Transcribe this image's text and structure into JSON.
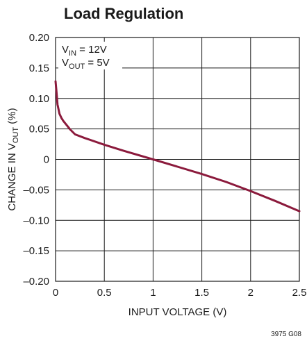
{
  "chart_data": {
    "type": "line",
    "title": "Load Regulation",
    "xlabel": "INPUT VOLTAGE (V)",
    "ylabel": {
      "prefix": "CHANGE IN V",
      "sub": "OUT",
      "suffix": " (%)"
    },
    "xlim": [
      0,
      2.5
    ],
    "ylim": [
      -0.2,
      0.2
    ],
    "x_ticks": [
      0,
      0.5,
      1,
      1.5,
      2,
      2.5
    ],
    "x_tick_labels": [
      "0",
      "0.5",
      "1",
      "1.5",
      "2",
      "2.5"
    ],
    "y_ticks": [
      0.2,
      0.15,
      0.1,
      0.05,
      0,
      -0.05,
      -0.1,
      -0.15,
      -0.2
    ],
    "y_tick_labels": [
      "0.20",
      "0.15",
      "0.10",
      "0.05",
      "0",
      "–0.05",
      "–0.10",
      "–0.15",
      "–0.20"
    ],
    "grid": true,
    "legend": [
      {
        "prefix": "V",
        "sub": "IN",
        "suffix": " = 12V"
      },
      {
        "prefix": "V",
        "sub": "OUT",
        "suffix": " = 5V"
      }
    ],
    "legend_position": "top-left",
    "series": [
      {
        "color": "#8b1a3c",
        "x": [
          0.0,
          0.01,
          0.02,
          0.04,
          0.06,
          0.08,
          0.1,
          0.15,
          0.2,
          0.3,
          0.5,
          0.7,
          1.0,
          1.25,
          1.5,
          1.75,
          2.0,
          2.25,
          2.5
        ],
        "y": [
          0.128,
          0.11,
          0.09,
          0.075,
          0.068,
          0.063,
          0.059,
          0.049,
          0.041,
          0.035,
          0.024,
          0.014,
          0.0,
          -0.012,
          -0.024,
          -0.037,
          -0.052,
          -0.068,
          -0.085
        ]
      }
    ],
    "figure_code": "3975 G08"
  }
}
